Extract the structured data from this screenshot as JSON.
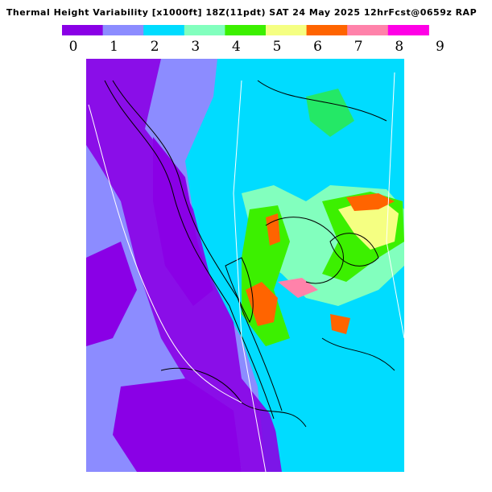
{
  "title": "Thermal Height Variability [x1000ft] 18Z(11pdt) SAT 24 May 2025 12hrFcst@0659z RAP",
  "legend": {
    "labels": [
      "0",
      "1",
      "2",
      "3",
      "4",
      "5",
      "6",
      "7",
      "8",
      "9"
    ],
    "colors": [
      "#8a00e6",
      "#8c8cff",
      "#00dcff",
      "#82ffbe",
      "#3cf000",
      "#f5ff82",
      "#ff6400",
      "#ff82aa",
      "#ff00e6"
    ]
  }
}
